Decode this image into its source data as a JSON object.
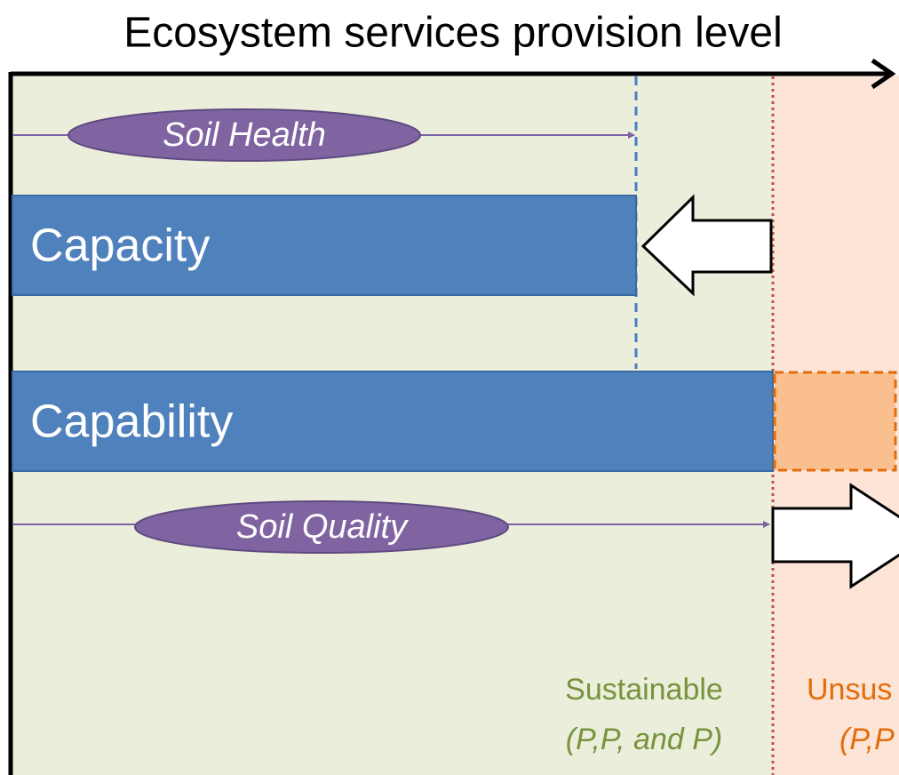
{
  "title": "Ecosystem services provision level",
  "soil_health": "Soil Health",
  "capacity": "Capacity",
  "capability": "Capability",
  "soil_quality": "Soil Quality",
  "sustainable": {
    "label": "Sustainable",
    "note": "(P,P, and P)"
  },
  "unsustainable": {
    "label": "Unsus",
    "note": "(P,P"
  }
}
